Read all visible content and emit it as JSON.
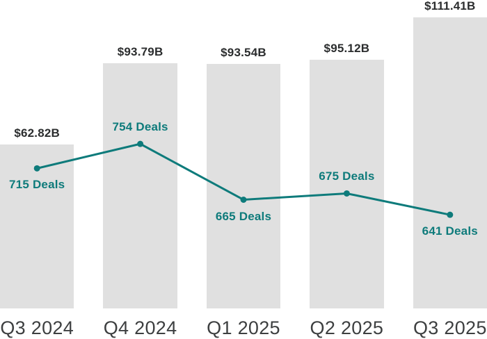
{
  "chart_data": {
    "type": "bar",
    "subtype": "bar-line-combo",
    "title": "",
    "xlabel": "",
    "ylabel": "",
    "categories": [
      "Q3 2024",
      "Q4 2024",
      "Q1 2025",
      "Q2 2025",
      "Q3 2025"
    ],
    "series": [
      {
        "name": "deal-value",
        "type": "bar",
        "unit": "USD billions",
        "values": [
          62.82,
          93.79,
          93.54,
          95.12,
          111.41
        ],
        "labels": [
          "$62.82B",
          "$93.79B",
          "$93.54B",
          "$95.12B",
          "$111.41B"
        ]
      },
      {
        "name": "deal-count",
        "type": "line",
        "unit": "deals",
        "values": [
          715,
          754,
          665,
          675,
          641
        ],
        "labels": [
          "715 Deals",
          "754 Deals",
          "665 Deals",
          "675 Deals",
          "641 Deals"
        ],
        "label_positions": [
          "below",
          "above",
          "below",
          "above",
          "below"
        ]
      }
    ],
    "value_axis": {
      "min": 0,
      "visible": false
    },
    "category_axis": {
      "visible": true,
      "position": "bottom"
    },
    "grid": false,
    "legend": "none",
    "colors": {
      "background": "#ffffff",
      "bar_fill": "#e0e0e0",
      "line": "#0e7b7b",
      "marker": "#0e7b7b",
      "deal_label": "#0e7b7b",
      "value_label": "#2b2d2e",
      "category_label": "#3d3f40"
    }
  }
}
